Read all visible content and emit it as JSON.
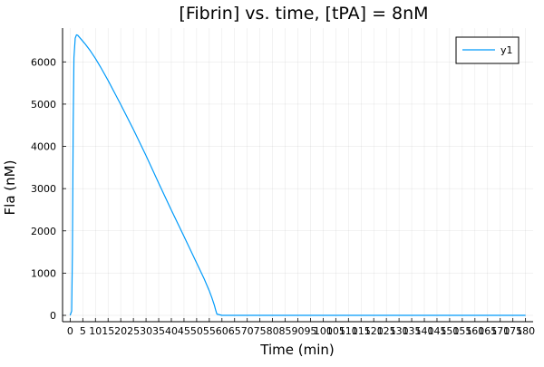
{
  "chart_data": {
    "type": "line",
    "title": "[Fibrin] vs. time, [tPA] = 8nM",
    "xlabel": "Time (min)",
    "ylabel": "Fla (nM)",
    "xlim": [
      -3,
      183
    ],
    "ylim": [
      -150,
      6800
    ],
    "xticks": [
      0,
      5,
      10,
      15,
      20,
      25,
      30,
      35,
      40,
      45,
      50,
      55,
      60,
      65,
      70,
      75,
      80,
      85,
      90,
      95,
      100,
      105,
      110,
      115,
      120,
      125,
      130,
      135,
      140,
      145,
      150,
      155,
      160,
      165,
      170,
      175,
      180
    ],
    "yticks": [
      0,
      1000,
      2000,
      3000,
      4000,
      5000,
      6000
    ],
    "grid": true,
    "legend_position": "top-right",
    "series": [
      {
        "name": "y1",
        "color": "#009AFA",
        "x": [
          0,
          0.6,
          0.9,
          1.2,
          1.5,
          2.0,
          2.5,
          3.0,
          4.0,
          5.0,
          6.0,
          8.0,
          10.0,
          12.0,
          15.0,
          20.0,
          25.0,
          30.0,
          35.0,
          40.0,
          45.0,
          50.0,
          53.0,
          55.0,
          56.0,
          57.0,
          57.5,
          58.0,
          60.0,
          80.0,
          100.0,
          120.0,
          140.0,
          160.0,
          180.0
        ],
        "y": [
          0,
          100,
          1500,
          4500,
          6100,
          6560,
          6640,
          6630,
          6560,
          6490,
          6420,
          6260,
          6080,
          5880,
          5560,
          4990,
          4400,
          3780,
          3130,
          2490,
          1870,
          1240,
          860,
          580,
          420,
          240,
          130,
          30,
          0,
          0,
          0,
          0,
          0,
          0,
          0
        ]
      }
    ]
  }
}
